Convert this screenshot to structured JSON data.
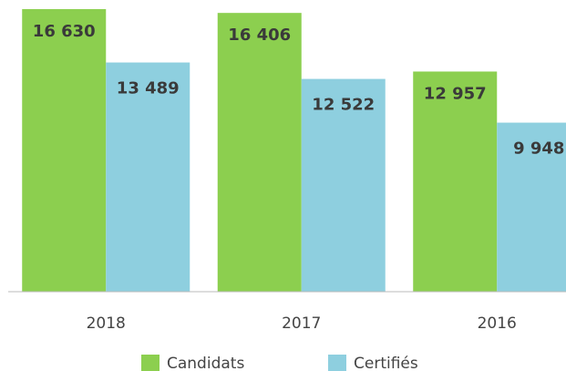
{
  "chart_data": {
    "type": "bar",
    "categories": [
      "2018",
      "2017",
      "2016"
    ],
    "series": [
      {
        "name": "Candidats",
        "color": "#8ccf4f",
        "values": [
          16630,
          16406,
          12957
        ],
        "value_labels": [
          "16 630",
          "16 406",
          "12 957"
        ]
      },
      {
        "name": "Certifiés",
        "color": "#8ecfdf",
        "values": [
          13489,
          12522,
          9948
        ],
        "value_labels": [
          "13 489",
          "12 522",
          "9 948"
        ]
      }
    ]
  }
}
